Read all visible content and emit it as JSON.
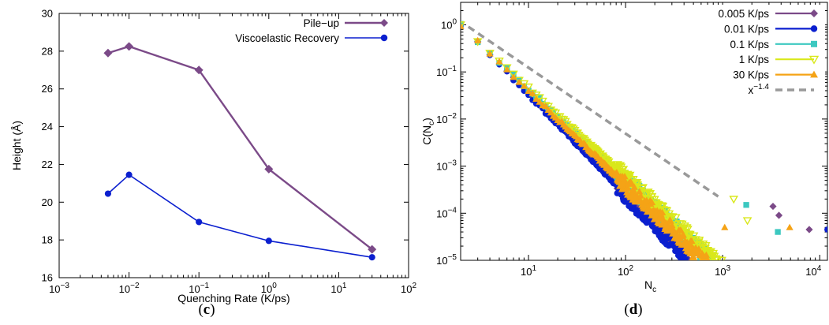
{
  "panels": [
    {
      "id": "c",
      "open": "(",
      "letter": "c",
      "close": ")"
    },
    {
      "id": "d",
      "open": "(",
      "letter": "d",
      "close": ")"
    }
  ],
  "chart_data": [
    {
      "type": "line",
      "xlabel": "Quenching Rate (K/ps)",
      "ylabel": "Height (Å)",
      "xscale": "log",
      "xlim": [
        0.001,
        100
      ],
      "ylim": [
        16,
        30
      ],
      "yticks": [
        "16",
        "18",
        "20",
        "22",
        "24",
        "26",
        "28",
        "30"
      ],
      "xticks": [
        {
          "base": "10",
          "exp": "−3",
          "value": 0.001
        },
        {
          "base": "10",
          "exp": "−2",
          "value": 0.01
        },
        {
          "base": "10",
          "exp": "−1",
          "value": 0.1
        },
        {
          "base": "10",
          "exp": "0",
          "value": 1
        },
        {
          "base": "10",
          "exp": "1",
          "value": 10
        },
        {
          "base": "10",
          "exp": "2",
          "value": 100
        }
      ],
      "legend_position": "top-right",
      "series": [
        {
          "name": "Pile−up",
          "color": "#7b4a88",
          "marker": "diamond",
          "x": [
            0.005,
            0.01,
            0.1,
            1,
            30
          ],
          "y": [
            27.9,
            28.25,
            27.0,
            21.75,
            17.5
          ]
        },
        {
          "name": "Viscoelastic Recovery",
          "color": "#0b1fcf",
          "marker": "circle",
          "x": [
            0.005,
            0.01,
            0.1,
            1,
            30
          ],
          "y": [
            20.45,
            21.45,
            18.95,
            17.95,
            17.08
          ]
        }
      ]
    },
    {
      "type": "scatter",
      "xlabel": {
        "base": "N",
        "sub": "c"
      },
      "ylabel": {
        "pre": "C(N",
        "sub": "c",
        "post": ")"
      },
      "xscale": "log",
      "yscale": "log",
      "xlim": [
        2,
        12000
      ],
      "ylim": [
        1e-05,
        3
      ],
      "xticks": [
        {
          "base": "10",
          "exp": "1",
          "value": 10
        },
        {
          "base": "10",
          "exp": "2",
          "value": 100
        },
        {
          "base": "10",
          "exp": "3",
          "value": 1000
        },
        {
          "base": "10",
          "exp": "4",
          "value": 10000
        }
      ],
      "yticks": [
        {
          "base": "10",
          "exp": "0",
          "label": "10",
          "value": 1
        },
        {
          "base": "10",
          "exp": "−1",
          "label": "10",
          "value": 0.1
        },
        {
          "base": "10",
          "exp": "−2",
          "label": "10",
          "value": 0.01
        },
        {
          "base": "10",
          "exp": "−3",
          "label": "10",
          "value": 0.001
        },
        {
          "base": "10",
          "exp": "−4",
          "label": "10",
          "value": 0.0001
        },
        {
          "base": "10",
          "exp": "−5",
          "label": "10",
          "value": 1e-05
        }
      ],
      "legend_position": "top-right",
      "series": [
        {
          "name": "0.005 K/ps",
          "color": "#7b4a88",
          "marker": "diamond",
          "exponent": -2.05,
          "nmax": 450,
          "extra": [
            [
              3300,
              0.00014
            ],
            [
              3800,
              9e-05
            ],
            [
              7800,
              4.5e-05
            ]
          ]
        },
        {
          "name": "0.01 K/ps",
          "color": "#0b1fcf",
          "marker": "circle",
          "exponent": -2.12,
          "nmax": 420,
          "extra": [
            [
              12000,
              4.5e-05
            ]
          ]
        },
        {
          "name": "0.1 K/ps",
          "color": "#3cc8c0",
          "marker": "square",
          "exponent": -1.95,
          "nmax": 1300,
          "extra": [
            [
              1750,
              0.00015
            ],
            [
              3700,
              4e-05
            ]
          ]
        },
        {
          "name": "1 K/ps",
          "color": "#d9e81a",
          "marker": "triangle-down",
          "exponent": -1.92,
          "nmax": 1300,
          "extra": [
            [
              1300,
              0.0002
            ],
            [
              1800,
              7e-05
            ]
          ]
        },
        {
          "name": "30 K/ps",
          "color": "#f5a316",
          "marker": "triangle-up",
          "exponent": -2.0,
          "nmax": 1100,
          "extra": [
            [
              1050,
              5e-05
            ],
            [
              4900,
              5e-05
            ]
          ]
        },
        {
          "name": "x",
          "name_exp": "−1.4",
          "color": "#999999",
          "marker": "dashed-line",
          "exponent": -1.4,
          "prefactor": 3.1,
          "x_range": [
            2.4,
            900
          ]
        }
      ]
    }
  ]
}
